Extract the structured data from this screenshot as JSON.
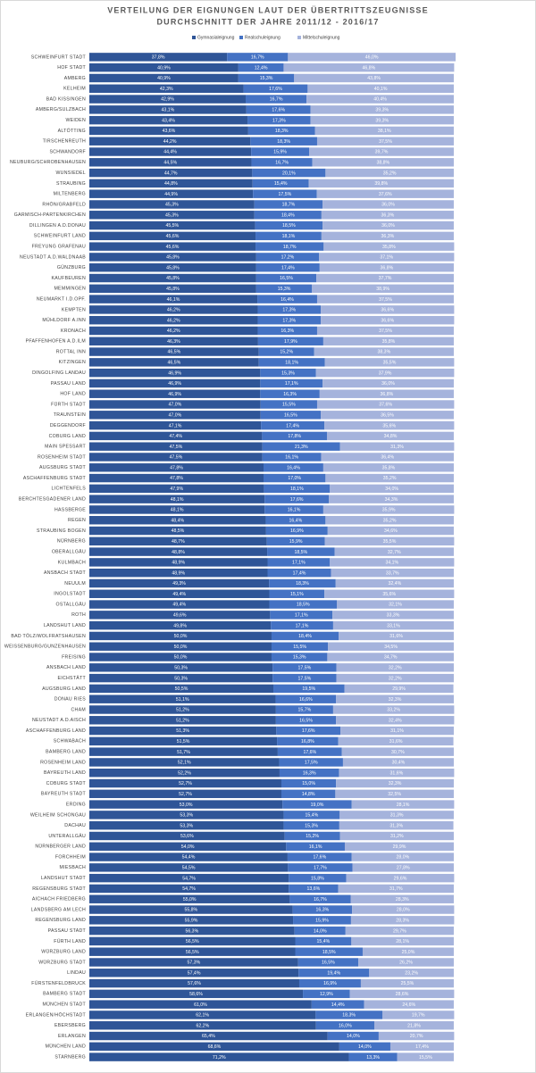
{
  "chart_data": {
    "type": "stacked-bar",
    "orientation": "horizontal",
    "title": "VERTEILUNG DER EIGNUNGEN LAUT DER ÜBERTRITTSZEUGNISSE",
    "subtitle": "DURCHSCHNITT DER JAHRE 2011/12 - 2016/17",
    "categories": [
      "SCHWEINFURT STADT",
      "HOF STADT",
      "AMBERG",
      "KELHEIM",
      "BAD KISSINGEN",
      "AMBERG/SULZBACH",
      "WEIDEN",
      "ALTÖTTING",
      "TIRSCHENREUTH",
      "SCHWANDORF",
      "NEUBURG/SCHROBENHAUSEN",
      "WUNSIEDEL",
      "STRAUBING",
      "MILTENBERG",
      "RHÖN/GRABFELD",
      "GARMISCH-PARTENKIRCHEN",
      "DILLINGEN A.D.DONAU",
      "SCHWEINFURT LAND",
      "FREYUNG GRAFENAU",
      "NEUSTADT A.D.WALDNAAB",
      "GÜNZBURG",
      "KAUFBEUREN",
      "MEMMINGEN",
      "NEUMARKT I.D.OPF.",
      "KEMPTEN",
      "MÜHLDORF A.INN",
      "KRONACH",
      "PFAFFENHOFEN A.D.ILM",
      "ROTTAL INN",
      "KITZINGEN",
      "DINGOLFING LANDAU",
      "PASSAU LAND",
      "HOF LAND",
      "FÜRTH STADT",
      "TRAUNSTEIN",
      "DEGGENDORF",
      "COBURG LAND",
      "MAIN SPESSART",
      "ROSENHEIM STADT",
      "AUGSBURG STADT",
      "ASCHAFFENBURG STADT",
      "LICHTENFELS",
      "BERCHTESGADENER LAND",
      "HASSBERGE",
      "REGEN",
      "STRAUBING BOGEN",
      "NÜRNBERG",
      "OBERALLGÄU",
      "KULMBACH",
      "ANSBACH STADT",
      "NEUULM",
      "INGOLSTADT",
      "OSTALLGÄU",
      "ROTH",
      "LANDSHUT LAND",
      "BAD TÖLZ/WOLFRATSHAUSEN",
      "WEISSENBURG/GUNZENHAUSEN",
      "FREISING",
      "ANSBACH LAND",
      "EICHSTÄTT",
      "AUGSBURG LAND",
      "DONAU RIES",
      "CHAM",
      "NEUSTADT A.D.AISCH",
      "ASCHAFFENBURG LAND",
      "SCHWABACH",
      "BAMBERG LAND",
      "ROSENHEIM LAND",
      "BAYREUTH LAND",
      "COBURG STADT",
      "BAYREUTH STADT",
      "ERDING",
      "WEILHEIM SCHONGAU",
      "DACHAU",
      "UNTERALLGÄU",
      "NÜRNBERGER LAND",
      "FORCHHEIM",
      "MIESBACH",
      "LANDSHUT STADT",
      "REGENSBURG STADT",
      "AICHACH FRIEDBERG",
      "LANDSBERG AM LECH",
      "REGENSBURG LAND",
      "PASSAU STADT",
      "FÜRTH LAND",
      "WÜRZBURG LAND",
      "WÜRZBURG STADT",
      "LINDAU",
      "FÜRSTENFELDBRUCK",
      "BAMBERG STADT",
      "MÜNCHEN STADT",
      "ERLANGEN/HÖCHSTADT",
      "EBERSBERG",
      "ERLANGEN",
      "MÜNCHEN LAND",
      "STARNBERG"
    ],
    "series": [
      {
        "name": "Gymnasialeignung",
        "color": "#2f5597",
        "values": [
          37.8,
          40.9,
          40.9,
          42.3,
          42.9,
          43.1,
          43.4,
          43.6,
          44.2,
          44.4,
          44.5,
          44.7,
          44.8,
          44.9,
          45.3,
          45.3,
          45.5,
          45.6,
          45.6,
          45.8,
          45.8,
          45.8,
          45.8,
          46.1,
          46.2,
          46.2,
          46.2,
          46.3,
          46.5,
          46.5,
          46.9,
          46.9,
          46.9,
          47.0,
          47.0,
          47.1,
          47.4,
          47.5,
          47.5,
          47.8,
          47.8,
          47.9,
          48.1,
          48.1,
          48.4,
          48.5,
          48.7,
          48.8,
          48.9,
          48.9,
          49.3,
          49.4,
          49.4,
          49.6,
          49.8,
          50.0,
          50.0,
          50.0,
          50.3,
          50.3,
          50.5,
          51.1,
          51.2,
          51.2,
          51.3,
          51.5,
          51.7,
          52.1,
          52.2,
          52.7,
          52.7,
          53.0,
          53.3,
          53.3,
          53.6,
          54.0,
          54.4,
          54.5,
          54.7,
          54.7,
          55.0,
          55.8,
          55.9,
          56.3,
          56.5,
          56.5,
          57.3,
          57.4,
          57.6,
          58.6,
          61.0,
          62.1,
          62.2,
          65.4,
          68.6,
          71.2
        ],
        "value_labels": [
          "37,8%",
          "40,9%",
          "40,9%",
          "42,3%",
          "42,9%",
          "43,1%",
          "43,4%",
          "43,6%",
          "44,2%",
          "44,4%",
          "44,5%",
          "44,7%",
          "44,8%",
          "44,9%",
          "45,3%",
          "45,3%",
          "45,5%",
          "45,6%",
          "45,6%",
          "45,8%",
          "45,8%",
          "45,8%",
          "45,8%",
          "46,1%",
          "46,2%",
          "46,2%",
          "46,2%",
          "46,3%",
          "46,5%",
          "46,5%",
          "46,9%",
          "46,9%",
          "46,9%",
          "47,0%",
          "47,0%",
          "47,1%",
          "47,4%",
          "47,5%",
          "47,5%",
          "47,8%",
          "47,8%",
          "47,9%",
          "48,1%",
          "48,1%",
          "48,4%",
          "48,5%",
          "48,7%",
          "48,8%",
          "48,9%",
          "48,9%",
          "49,3%",
          "49,4%",
          "49,4%",
          "49,6%",
          "49,8%",
          "50,0%",
          "50,0%",
          "50,0%",
          "50,3%",
          "50,3%",
          "50,5%",
          "51,1%",
          "51,2%",
          "51,2%",
          "51,3%",
          "51,5%",
          "51,7%",
          "52,1%",
          "52,2%",
          "52,7%",
          "52,7%",
          "53,0%",
          "53,3%",
          "53,3%",
          "53,6%",
          "54,0%",
          "54,4%",
          "54,5%",
          "54,7%",
          "54,7%",
          "55,0%",
          "55,8%",
          "55,9%",
          "56,3%",
          "56,5%",
          "56,5%",
          "57,3%",
          "57,4%",
          "57,6%",
          "58,6%",
          "61,0%",
          "62,1%",
          "62,2%",
          "65,4%",
          "68,6%",
          "71,2%"
        ]
      },
      {
        "name": "Realschuleignung",
        "color": "#4472c4",
        "values": [
          16.7,
          12.4,
          15.3,
          17.6,
          16.7,
          17.6,
          17.3,
          18.3,
          18.3,
          15.9,
          16.7,
          20.1,
          15.4,
          17.5,
          18.7,
          18.4,
          18.5,
          18.1,
          18.7,
          17.2,
          17.4,
          16.5,
          15.3,
          16.4,
          17.3,
          17.3,
          16.3,
          17.9,
          15.2,
          18.1,
          15.3,
          17.1,
          16.3,
          15.5,
          16.5,
          17.4,
          17.8,
          21.3,
          16.1,
          16.4,
          17.0,
          18.1,
          17.6,
          16.1,
          16.4,
          16.9,
          15.9,
          18.5,
          17.1,
          17.4,
          18.3,
          15.1,
          18.5,
          17.1,
          17.1,
          18.4,
          15.5,
          15.3,
          17.5,
          17.5,
          19.5,
          16.6,
          15.7,
          16.5,
          17.6,
          16.8,
          17.6,
          17.5,
          16.3,
          15.0,
          14.8,
          19.0,
          15.4,
          15.3,
          15.2,
          16.1,
          17.6,
          17.7,
          15.8,
          13.6,
          16.7,
          16.3,
          15.9,
          14.0,
          15.4,
          18.5,
          16.5,
          19.4,
          16.9,
          12.9,
          14.4,
          18.3,
          16.0,
          14.0,
          14.0,
          13.3
        ],
        "value_labels": [
          "16,7%",
          "12,4%",
          "15,3%",
          "17,6%",
          "16,7%",
          "17,6%",
          "17,3%",
          "18,3%",
          "18,3%",
          "15,9%",
          "16,7%",
          "20,1%",
          "15,4%",
          "17,5%",
          "18,7%",
          "18,4%",
          "18,5%",
          "18,1%",
          "18,7%",
          "17,2%",
          "17,4%",
          "16,5%",
          "15,3%",
          "16,4%",
          "17,3%",
          "17,3%",
          "16,3%",
          "17,9%",
          "15,2%",
          "18,1%",
          "15,3%",
          "17,1%",
          "16,3%",
          "15,5%",
          "16,5%",
          "17,4%",
          "17,8%",
          "21,3%",
          "16,1%",
          "16,4%",
          "17,0%",
          "18,1%",
          "17,6%",
          "16,1%",
          "16,4%",
          "16,9%",
          "15,9%",
          "18,5%",
          "17,1%",
          "17,4%",
          "18,3%",
          "15,1%",
          "18,5%",
          "17,1%",
          "17,1%",
          "18,4%",
          "15,5%",
          "15,3%",
          "17,5%",
          "17,5%",
          "19,5%",
          "16,6%",
          "15,7%",
          "16,5%",
          "17,6%",
          "16,8%",
          "17,6%",
          "17,5%",
          "16,3%",
          "15,0%",
          "14,8%",
          "19,0%",
          "15,4%",
          "15,3%",
          "15,2%",
          "16,1%",
          "17,6%",
          "17,7%",
          "15,8%",
          "13,6%",
          "16,7%",
          "16,3%",
          "15,9%",
          "14,0%",
          "15,4%",
          "18,5%",
          "16,5%",
          "19,4%",
          "16,9%",
          "12,9%",
          "14,4%",
          "18,3%",
          "16,0%",
          "14,0%",
          "14,0%",
          "13,3%"
        ]
      },
      {
        "name": "Mittelschuleignung",
        "color": "#a5b3dc",
        "values": [
          46.0,
          46.8,
          43.8,
          40.1,
          40.4,
          39.3,
          39.3,
          38.1,
          37.5,
          39.7,
          38.8,
          35.2,
          39.8,
          37.6,
          36.0,
          36.3,
          36.0,
          36.3,
          35.8,
          37.1,
          36.8,
          37.7,
          38.9,
          37.5,
          36.6,
          36.6,
          37.5,
          35.8,
          38.3,
          35.5,
          37.9,
          36.0,
          36.8,
          37.6,
          36.5,
          35.6,
          34.8,
          31.3,
          36.4,
          35.8,
          35.2,
          34.0,
          34.3,
          35.9,
          35.2,
          34.6,
          35.5,
          32.7,
          34.1,
          33.7,
          32.4,
          35.6,
          32.1,
          33.3,
          33.1,
          31.6,
          34.5,
          34.7,
          32.2,
          32.2,
          29.9,
          32.3,
          33.2,
          32.4,
          31.1,
          31.6,
          30.7,
          30.4,
          31.6,
          32.3,
          32.5,
          28.1,
          31.3,
          31.3,
          31.2,
          29.9,
          28.0,
          27.8,
          29.6,
          31.7,
          28.3,
          28.0,
          28.3,
          29.7,
          28.1,
          25.0,
          26.2,
          23.2,
          25.5,
          28.6,
          24.6,
          19.7,
          21.8,
          20.7,
          17.4,
          15.5
        ],
        "value_labels": [
          "46,0%",
          "46,8%",
          "43,8%",
          "40,1%",
          "40,4%",
          "39,3%",
          "39,3%",
          "38,1%",
          "37,5%",
          "39,7%",
          "38,8%",
          "35,2%",
          "39,8%",
          "37,6%",
          "36,0%",
          "36,3%",
          "36,0%",
          "36,3%",
          "35,8%",
          "37,1%",
          "36,8%",
          "37,7%",
          "38,9%",
          "37,5%",
          "36,6%",
          "36,6%",
          "37,5%",
          "35,8%",
          "38,3%",
          "35,5%",
          "37,9%",
          "36,0%",
          "36,8%",
          "37,6%",
          "36,5%",
          "35,6%",
          "34,8%",
          "31,3%",
          "36,4%",
          "35,8%",
          "35,2%",
          "34,0%",
          "34,3%",
          "35,9%",
          "35,2%",
          "34,6%",
          "35,5%",
          "32,7%",
          "34,1%",
          "33,7%",
          "32,4%",
          "35,6%",
          "32,1%",
          "33,3%",
          "33,1%",
          "31,6%",
          "34,5%",
          "34,7%",
          "32,2%",
          "32,2%",
          "29,9%",
          "32,3%",
          "33,2%",
          "32,4%",
          "31,1%",
          "31,6%",
          "30,7%",
          "30,4%",
          "31,6%",
          "32,3%",
          "32,5%",
          "28,1%",
          "31,3%",
          "31,3%",
          "31,2%",
          "29,9%",
          "28,0%",
          "27,8%",
          "29,6%",
          "31,7%",
          "28,3%",
          "28,0%",
          "28,3%",
          "29,7%",
          "28,1%",
          "25,0%",
          "26,2%",
          "23,2%",
          "25,5%",
          "28,6%",
          "24,6%",
          "19,7%",
          "21,8%",
          "20,7%",
          "17,4%",
          "15,5%"
        ]
      }
    ],
    "legend": "top"
  }
}
